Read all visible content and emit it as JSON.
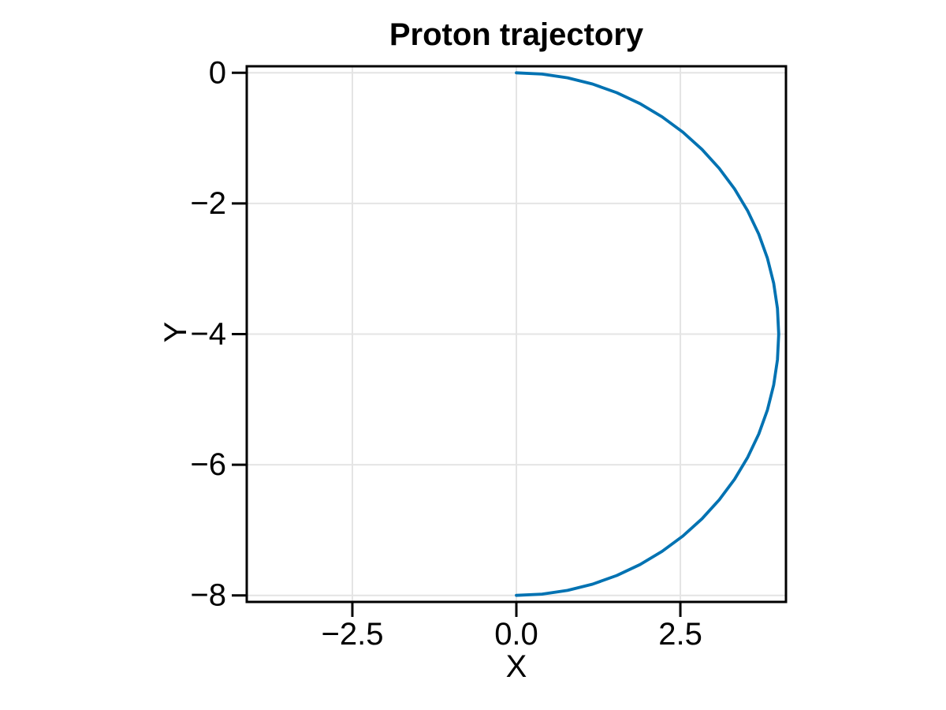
{
  "chart_data": {
    "type": "line",
    "title": "Proton trajectory",
    "xlabel": "X",
    "ylabel": "Y",
    "xlim": [
      -4.11,
      4.11
    ],
    "ylim": [
      -8.1,
      0.1
    ],
    "x_ticks": [
      -2.5,
      0,
      2.5
    ],
    "x_tick_labels": [
      "−2.5",
      "0.0",
      "2.5"
    ],
    "y_ticks": [
      0,
      -2,
      -4,
      -6,
      -8
    ],
    "y_tick_labels": [
      "0",
      "−2",
      "−4",
      "−6",
      "−8"
    ],
    "grid": true,
    "legend": "none",
    "colors": {
      "line": "#0072B2",
      "grid": "#e4e4e4",
      "spine": "#000000",
      "text": "#000000",
      "background": "#ffffff"
    },
    "series": [
      {
        "x": [
          0,
          0.3921,
          0.7804,
          1.1611,
          1.5307,
          1.8856,
          2.2223,
          2.5376,
          2.8284,
          3.092,
          3.3259,
          3.5277,
          3.6955,
          3.8278,
          3.9231,
          3.9807,
          4,
          3.9807,
          3.9231,
          3.8278,
          3.6955,
          3.5277,
          3.3259,
          3.092,
          2.8284,
          2.5376,
          2.2223,
          1.8856,
          1.5307,
          1.1611,
          0.7804,
          0.3921,
          0
        ],
        "y": [
          0,
          -0.0193,
          -0.0769,
          -0.1723,
          -0.3045,
          -0.4723,
          -0.6741,
          -0.908,
          -1.1716,
          -1.4624,
          -1.7777,
          -2.1144,
          -2.4693,
          -2.8389,
          -3.2196,
          -3.6079,
          -4,
          -4.3921,
          -4.7804,
          -5.1611,
          -5.5307,
          -5.8856,
          -6.2223,
          -6.5376,
          -6.8284,
          -7.092,
          -7.3259,
          -7.5277,
          -7.6955,
          -7.8278,
          -7.9231,
          -7.9807,
          -8
        ]
      }
    ]
  }
}
